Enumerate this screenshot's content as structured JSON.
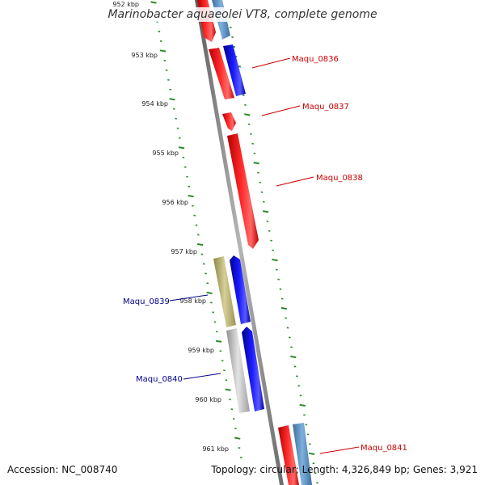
{
  "title": "Marinobacter aquaeolei VT8, complete genome",
  "footer": {
    "accession": "Accession: NC_008740",
    "summary": "Topology: circular; Length: 4,326,849 bp; Genes: 3,921"
  },
  "colors": {
    "backbone": "#8a8a8a",
    "tick": "#2a8a2a",
    "forward_gene": "#ff1a1a",
    "reverse_gene": "#1a1aff",
    "steel_gene": "#5b8fc0",
    "olive_gene": "#b8b07a",
    "gray_gene": "#bdbdbd",
    "label_right": "#cc0000",
    "label_left": "#00008b"
  },
  "ticks": [
    "952 kbp",
    "953 kbp",
    "954 kbp",
    "955 kbp",
    "956 kbp",
    "957 kbp",
    "958 kbp",
    "959 kbp",
    "960 kbp",
    "961 kbp"
  ],
  "genes": [
    {
      "label": "",
      "color": "forward_gene"
    },
    {
      "label": "",
      "color": "steel_gene"
    },
    {
      "label": "Maqu_0836",
      "color": "forward_gene"
    },
    {
      "label": "",
      "color": "reverse_gene"
    },
    {
      "label": "Maqu_0837",
      "color": "forward_gene"
    },
    {
      "label": "Maqu_0838",
      "color": "forward_gene"
    },
    {
      "label": "Maqu_0839",
      "color": "olive_gene"
    },
    {
      "label": "",
      "color": "reverse_gene"
    },
    {
      "label": "Maqu_0840",
      "color": "gray_gene"
    },
    {
      "label": "",
      "color": "reverse_gene"
    },
    {
      "label": "Maqu_0841",
      "color": "forward_gene"
    },
    {
      "label": "",
      "color": "steel_gene"
    }
  ]
}
